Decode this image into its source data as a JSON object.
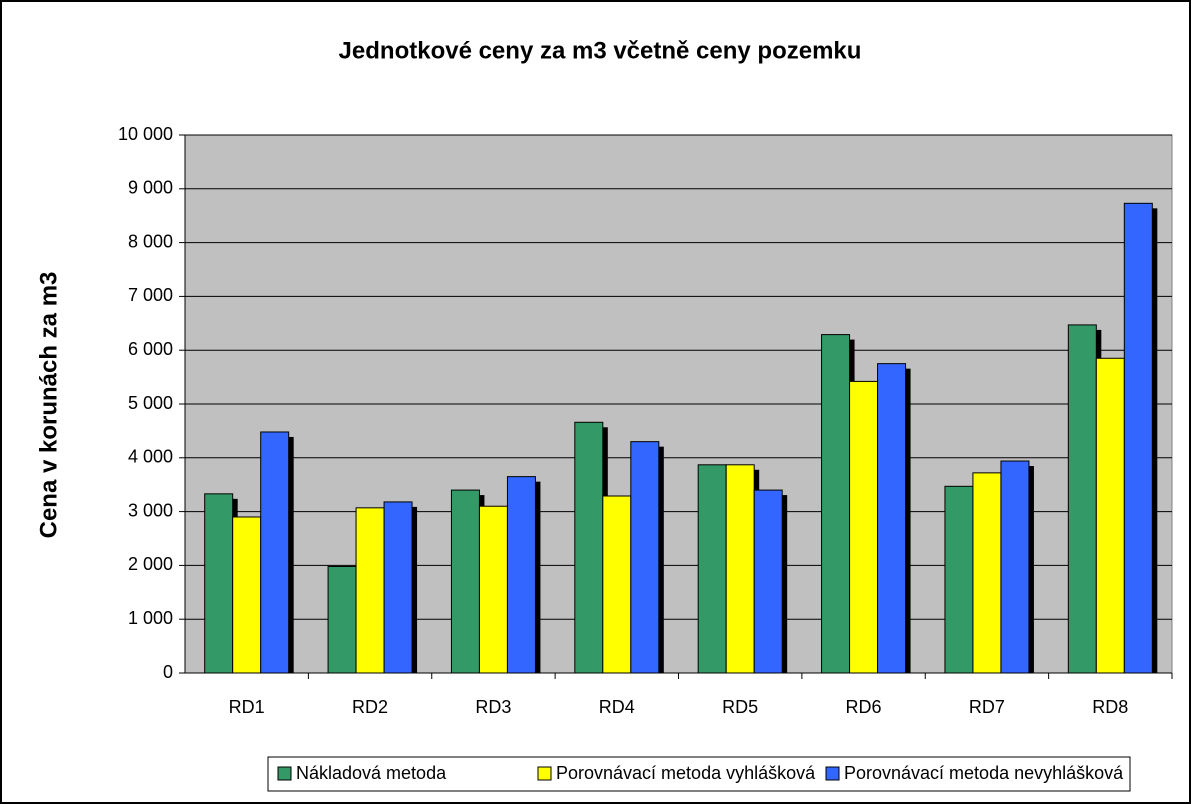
{
  "chart_data": {
    "type": "bar",
    "title": "Jednotkové ceny za m3 včetně ceny pozemku",
    "y_label": "Cena v korunách za m3",
    "categories": [
      "RD1",
      "RD2",
      "RD3",
      "RD4",
      "RD5",
      "RD6",
      "RD7",
      "RD8"
    ],
    "series": [
      {
        "name": "Nákladová metoda",
        "color": "#339966",
        "values": [
          3330,
          1980,
          3400,
          4660,
          3870,
          6290,
          3470,
          6470
        ]
      },
      {
        "name": "Porovnávací metoda vyhlášková",
        "color": "#ffff00",
        "values": [
          2900,
          3070,
          3100,
          3290,
          3870,
          5420,
          3720,
          5850
        ]
      },
      {
        "name": "Porovnávací metoda nevyhlášková",
        "color": "#3366ff",
        "values": [
          4480,
          3180,
          3650,
          4300,
          3400,
          5750,
          3940,
          8730
        ]
      }
    ],
    "ylim": [
      0,
      10000
    ],
    "yticks": [
      {
        "value": 0,
        "label": "0"
      },
      {
        "value": 1000,
        "label": "1 000"
      },
      {
        "value": 2000,
        "label": "2 000"
      },
      {
        "value": 3000,
        "label": "3 000"
      },
      {
        "value": 4000,
        "label": "4 000"
      },
      {
        "value": 5000,
        "label": "5 000"
      },
      {
        "value": 6000,
        "label": "6 000"
      },
      {
        "value": 7000,
        "label": "7 000"
      },
      {
        "value": 8000,
        "label": "8 000"
      },
      {
        "value": 9000,
        "label": "9 000"
      },
      {
        "value": 10000,
        "label": "10 000"
      }
    ],
    "grid": true,
    "legend": "bottom"
  }
}
